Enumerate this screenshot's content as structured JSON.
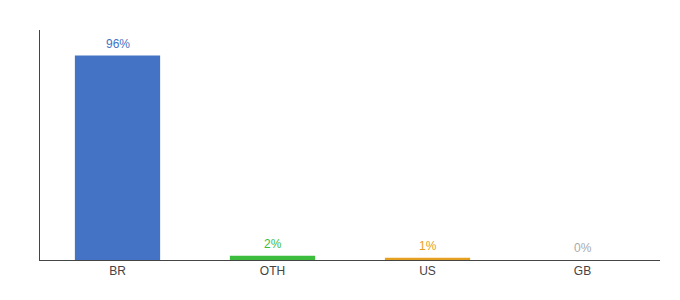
{
  "chart_data": {
    "type": "bar",
    "categories": [
      "BR",
      "OTH",
      "US",
      "GB"
    ],
    "values": [
      96,
      2,
      1,
      0
    ],
    "value_labels": [
      "96%",
      "2%",
      "1%",
      "0%"
    ],
    "colors": [
      "#4472C4",
      "#3DBD3D",
      "#E6A020",
      "#AAAAAA"
    ],
    "ylim": [
      0,
      108
    ],
    "data_labels": true,
    "tick_labels": "x",
    "grid": false
  }
}
